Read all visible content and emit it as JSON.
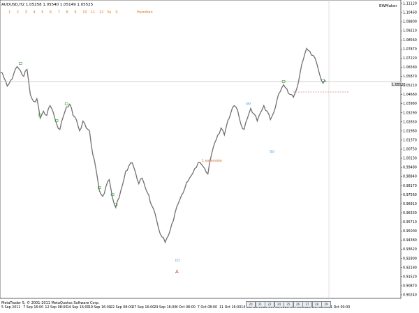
{
  "header": {
    "symbol_info": "AUDUSD,H2  1.05258 1.05540 1.05149 1.05525",
    "indicator": "EWMaker",
    "timeframes": [
      "1",
      "2",
      "3",
      "4",
      "5",
      "6",
      "7",
      "8",
      "9",
      "10",
      "11",
      "12",
      "Ss",
      "S"
    ],
    "wave_button": "Hamilton"
  },
  "copyright": "MetaTrader 5, © 2001-2011 MetaQuotes Software Corp.",
  "price_axis": {
    "labels": [
      "1.11120",
      "1.10460",
      "1.09800",
      "1.09210",
      "1.08560",
      "1.07870",
      "1.07220",
      "1.06580",
      "1.05870",
      "1.05210",
      "1.04660",
      "1.03980",
      "1.03290",
      "1.02650",
      "1.01960",
      "1.01370",
      "1.00750",
      "1.00130",
      "0.99480",
      "0.98840",
      "0.98170",
      "0.97560",
      "0.96910",
      "0.96330",
      "0.95710",
      "0.95000",
      "0.94380",
      "0.93620",
      "0.92900",
      "0.92190",
      "0.91520",
      "0.90870",
      "0.90240"
    ],
    "current_price": "1.05525"
  },
  "time_axis": {
    "labels": [
      "5 Sep 2011",
      "7 Sep 16:00",
      "12 Sep 08:00",
      "14 Sep 16:00",
      "19 Sep 16:00",
      "22 Sep 08:00",
      "27 Sep 16:00",
      "29 Sep 16:00",
      "4 Oct 08:00",
      "7 Oct 08:00",
      "11 Oct 16:00",
      "14 Oct 08:00",
      "19 Oct 00:00",
      "21 Oct 08:00",
      "26 Oct 08:00",
      "31 Oct 00:00"
    ]
  },
  "bottom_tags": [
    "20",
    "21",
    "22",
    "24",
    "25",
    "26",
    "27",
    "28",
    "29"
  ],
  "annotations": {
    "extension_label": "1 extension",
    "big_wave": "A",
    "wave_c": "(c)",
    "wave_a_blue": "(a)",
    "wave_b_blue": "(b)"
  },
  "chart_data": {
    "type": "line",
    "title": "AUDUSD,H2",
    "ylim": [
      0.9024,
      1.1112
    ],
    "x_range": [
      0,
      100
    ],
    "series": [
      {
        "name": "AUDUSD",
        "values": [
          [
            0,
            1.062
          ],
          [
            1,
            1.058
          ],
          [
            2,
            1.052
          ],
          [
            3,
            1.056
          ],
          [
            4,
            1.061
          ],
          [
            5,
            1.066
          ],
          [
            6,
            1.063
          ],
          [
            7,
            1.059
          ],
          [
            8,
            1.064
          ],
          [
            9,
            1.046
          ],
          [
            10,
            1.041
          ],
          [
            11,
            1.043
          ],
          [
            12,
            1.029
          ],
          [
            13,
            1.034
          ],
          [
            14,
            1.031
          ],
          [
            15,
            1.038
          ],
          [
            16,
            1.033
          ],
          [
            17,
            1.025
          ],
          [
            18,
            1.021
          ],
          [
            19,
            1.03
          ],
          [
            20,
            1.037
          ],
          [
            21,
            1.039
          ],
          [
            22,
            1.031
          ],
          [
            23,
            1.028
          ],
          [
            24,
            1.02
          ],
          [
            25,
            1.027
          ],
          [
            26,
            1.022
          ],
          [
            27,
            1.02
          ],
          [
            28,
            1.003
          ],
          [
            29,
            0.992
          ],
          [
            30,
            0.977
          ],
          [
            31,
            0.973
          ],
          [
            32,
            0.98
          ],
          [
            33,
            0.985
          ],
          [
            34,
            0.972
          ],
          [
            35,
            0.965
          ],
          [
            36,
            0.972
          ],
          [
            37,
            0.981
          ],
          [
            38,
            0.991
          ],
          [
            39,
            0.995
          ],
          [
            40,
            0.997
          ],
          [
            41,
            0.99
          ],
          [
            42,
            0.982
          ],
          [
            43,
            0.986
          ],
          [
            44,
            0.979
          ],
          [
            45,
            0.974
          ],
          [
            46,
            0.966
          ],
          [
            47,
            0.96
          ],
          [
            48,
            0.95
          ],
          [
            49,
            0.944
          ],
          [
            50,
            0.94
          ],
          [
            51,
            0.945
          ],
          [
            52,
            0.953
          ],
          [
            53,
            0.961
          ],
          [
            54,
            0.968
          ],
          [
            55,
            0.974
          ],
          [
            56,
            0.979
          ],
          [
            57,
            0.984
          ],
          [
            58,
            0.988
          ],
          [
            59,
            0.993
          ],
          [
            60,
            0.997
          ],
          [
            61,
            0.996
          ],
          [
            62,
            0.993
          ],
          [
            63,
            0.989
          ],
          [
            64,
            1.002
          ],
          [
            65,
            1.011
          ],
          [
            66,
            1.017
          ],
          [
            67,
            1.022
          ],
          [
            68,
            1.017
          ],
          [
            69,
            1.027
          ],
          [
            70,
            1.033
          ],
          [
            71,
            1.038
          ],
          [
            72,
            1.035
          ],
          [
            73,
            1.025
          ],
          [
            74,
            1.021
          ],
          [
            75,
            1.029
          ],
          [
            76,
            1.036
          ],
          [
            77,
            1.032
          ],
          [
            78,
            1.027
          ],
          [
            79,
            1.033
          ],
          [
            80,
            1.038
          ],
          [
            81,
            1.034
          ],
          [
            82,
            1.028
          ],
          [
            83,
            1.033
          ],
          [
            84,
            1.042
          ],
          [
            85,
            1.048
          ],
          [
            86,
            1.053
          ],
          [
            87,
            1.05
          ],
          [
            88,
            1.046
          ],
          [
            89,
            1.044
          ],
          [
            90,
            1.05
          ],
          [
            91,
            1.061
          ],
          [
            92,
            1.071
          ],
          [
            93,
            1.079
          ],
          [
            94,
            1.077
          ],
          [
            95,
            1.074
          ],
          [
            96,
            1.069
          ],
          [
            97,
            1.06
          ],
          [
            98,
            1.054
          ],
          [
            99,
            1.0552
          ]
        ]
      }
    ],
    "grid": false,
    "legend": "none"
  }
}
